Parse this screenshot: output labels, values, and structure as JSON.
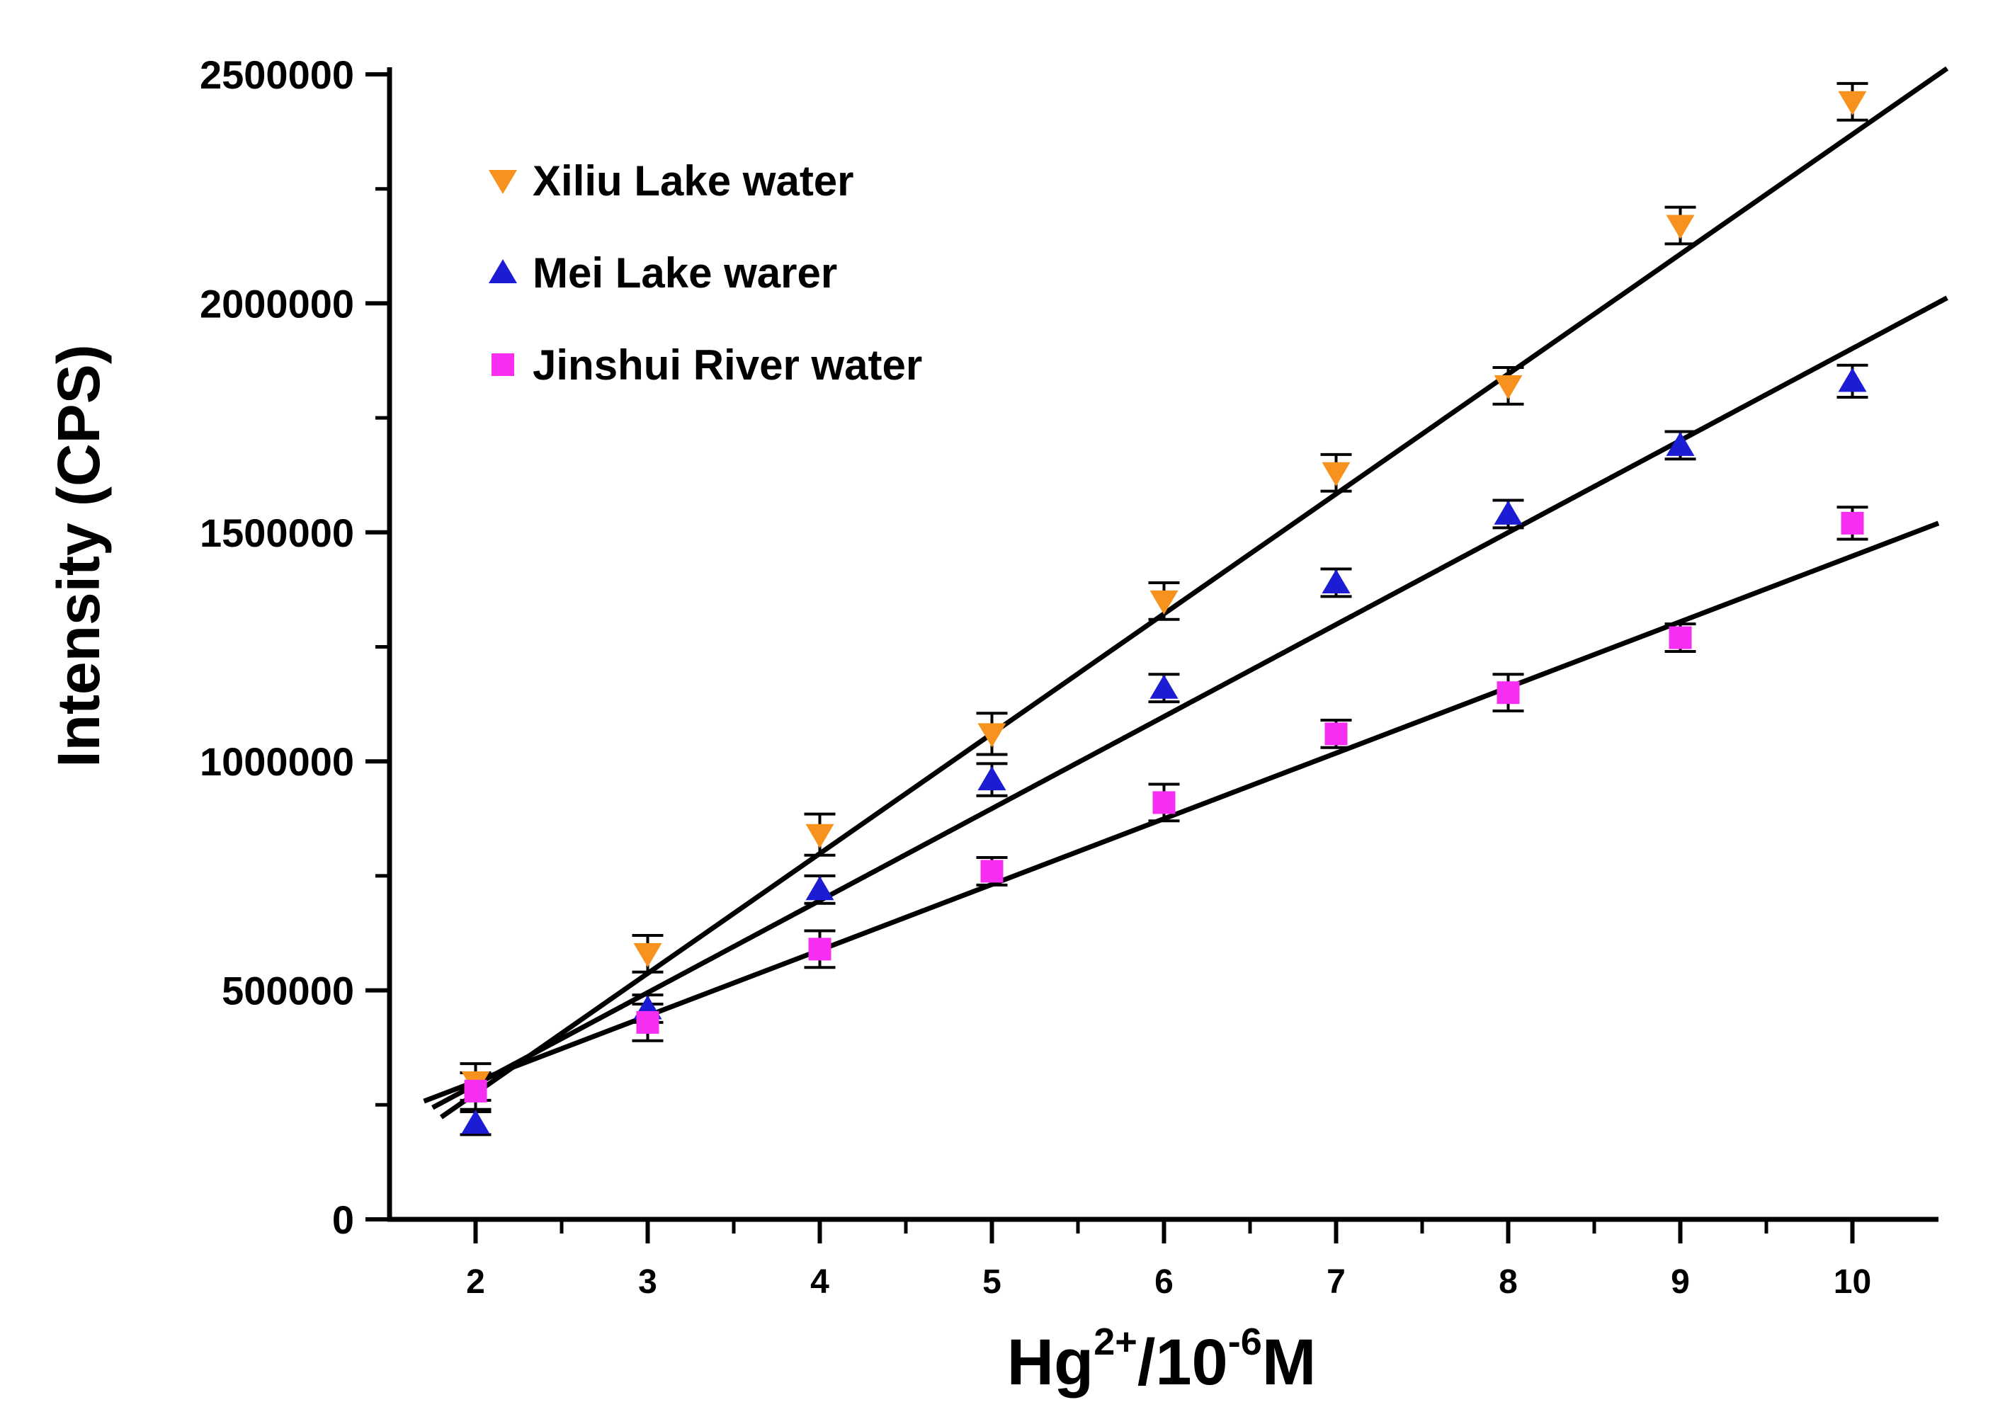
{
  "chart_data": {
    "type": "scatter",
    "title": "",
    "xlabel": {
      "base": "Hg",
      "base_sup": "2+",
      "mid": "/10",
      "mid_sup": "-6",
      "unit": "M"
    },
    "ylabel": "Intensity (CPS)",
    "xlim": [
      1.5,
      10.5
    ],
    "ylim": [
      0,
      2500000
    ],
    "x_ticks": [
      2,
      3,
      4,
      5,
      6,
      7,
      8,
      9,
      10
    ],
    "x_tick_labels": [
      "2",
      "3",
      "4",
      "5",
      "6",
      "7",
      "8",
      "9",
      "10"
    ],
    "x_minor_ticks": [
      2.5,
      3.5,
      4.5,
      5.5,
      6.5,
      7.5,
      8.5,
      9.5
    ],
    "y_ticks": [
      0,
      500000,
      1000000,
      1500000,
      2000000,
      2500000
    ],
    "y_tick_labels": [
      "0",
      "500000",
      "1000000",
      "1500000",
      "2000000",
      "2500000"
    ],
    "y_minor_ticks": [
      250000,
      750000,
      1250000,
      1750000,
      2250000
    ],
    "grid": false,
    "legend_position": "top-left",
    "series": [
      {
        "name": "Xiliu Lake water",
        "marker": "triangle-down",
        "color": "#f7921e",
        "x": [
          2,
          3,
          4,
          5,
          6,
          7,
          8,
          9,
          10
        ],
        "y": [
          300000,
          580000,
          840000,
          1060000,
          1350000,
          1630000,
          1820000,
          2170000,
          2440000
        ],
        "error": [
          40000,
          40000,
          45000,
          45000,
          40000,
          40000,
          40000,
          40000,
          40000
        ],
        "fit": {
          "x": [
            1.8,
            10.55
          ],
          "y": [
            223000,
            2513000
          ]
        }
      },
      {
        "name": "Mei Lake warer",
        "marker": "triangle-up",
        "color": "#1c1cd4",
        "x": [
          2,
          3,
          4,
          5,
          6,
          7,
          8,
          9,
          10
        ],
        "y": [
          210000,
          460000,
          720000,
          960000,
          1160000,
          1390000,
          1540000,
          1690000,
          1830000
        ],
        "error": [
          25000,
          30000,
          30000,
          35000,
          30000,
          30000,
          30000,
          30000,
          35000
        ],
        "fit": {
          "x": [
            1.75,
            10.55
          ],
          "y": [
            244000,
            2012000
          ]
        }
      },
      {
        "name": "Jinshui River water",
        "marker": "square",
        "color": "#f52ef2",
        "x": [
          2,
          3,
          4,
          5,
          6,
          7,
          8,
          9,
          10
        ],
        "y": [
          280000,
          430000,
          590000,
          760000,
          910000,
          1060000,
          1150000,
          1270000,
          1520000
        ],
        "error": [
          40000,
          40000,
          40000,
          30000,
          40000,
          30000,
          40000,
          30000,
          35000
        ],
        "fit": {
          "x": [
            1.7,
            10.5
          ],
          "y": [
            258000,
            1520000
          ]
        }
      }
    ]
  }
}
